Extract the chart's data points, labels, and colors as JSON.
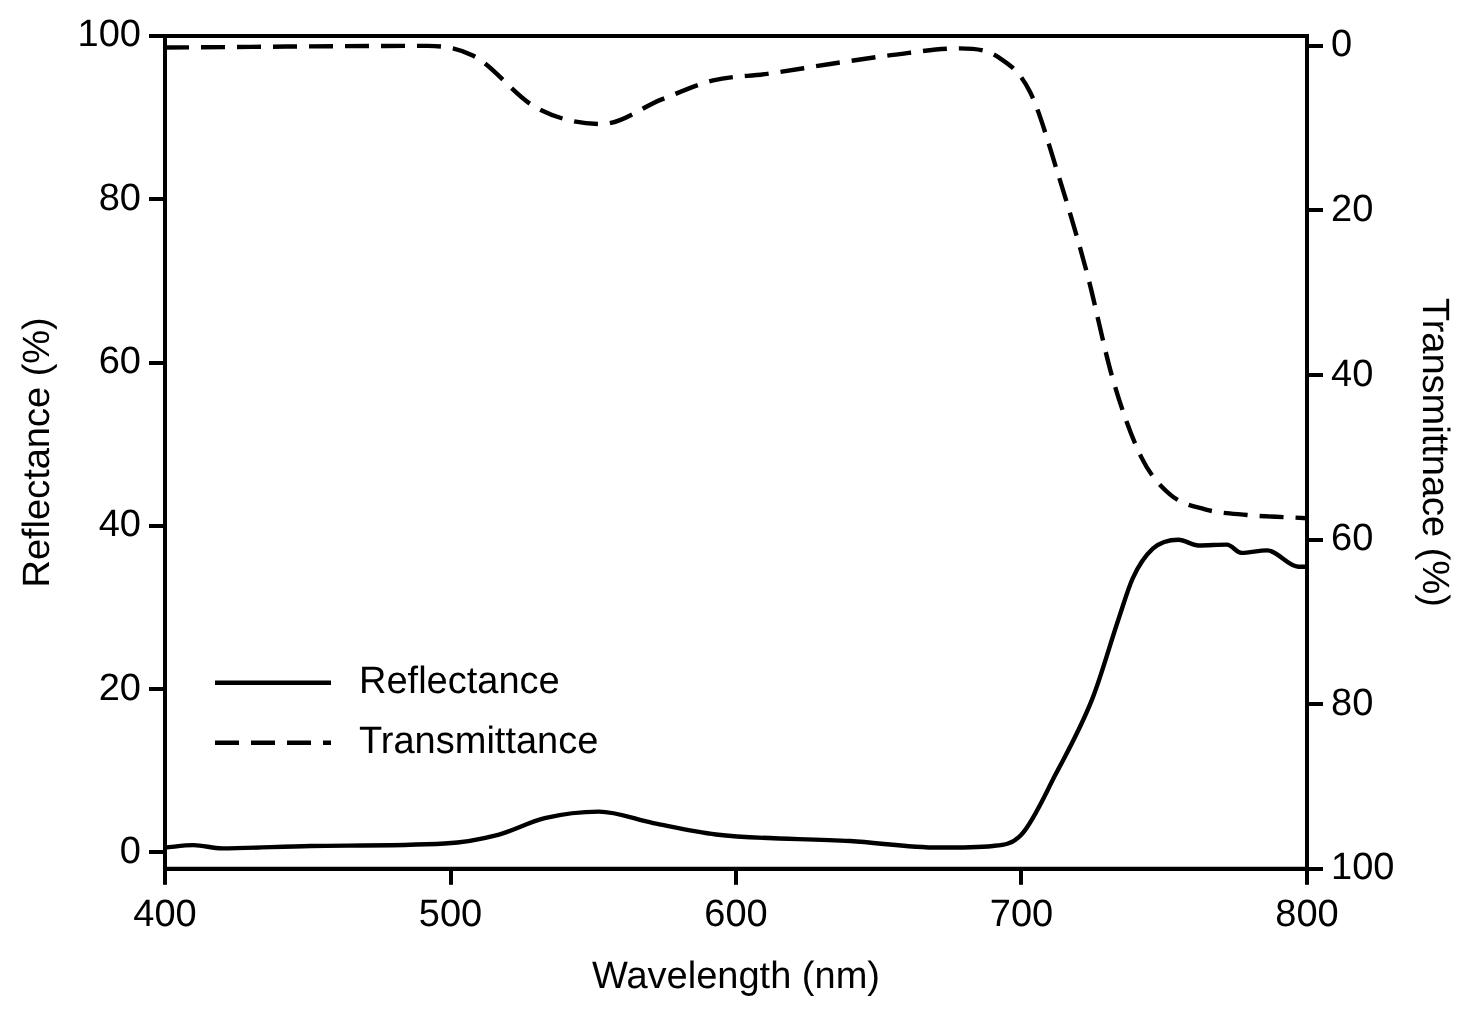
{
  "chart_data": {
    "type": "line",
    "xlabel": "Wavelength (nm)",
    "ylabel": "Reflectance (%)",
    "y2label": "Transmittnace (%)",
    "xlim": [
      400,
      800
    ],
    "xticks": [
      400,
      500,
      600,
      700,
      800
    ],
    "ylim": [
      -2,
      100
    ],
    "yticks": [
      0,
      20,
      40,
      60,
      80,
      100
    ],
    "y2lim": [
      100,
      -1.2
    ],
    "y2ticks": [
      0,
      20,
      40,
      60,
      80,
      100
    ],
    "grid": false,
    "legend": "bottom left",
    "marker": "none",
    "series": [
      {
        "name": "Reflectance",
        "color": "#000000",
        "line_style": "solid",
        "x": [
          400,
          410,
          420,
          451,
          498,
          517,
          533,
          552,
          571,
          593,
          640,
          671,
          690,
          700,
          712,
          725,
          734,
          739,
          746,
          755,
          762,
          772,
          777,
          786,
          797,
          800
        ],
        "values": [
          0.6,
          0.9,
          0.5,
          0.8,
          1.1,
          2.2,
          4.2,
          5.0,
          3.6,
          2.2,
          1.4,
          0.6,
          0.8,
          2.2,
          9.6,
          19,
          28.6,
          33.6,
          37.2,
          38.3,
          37.6,
          37.7,
          36.7,
          37,
          35.0,
          35
        ]
      },
      {
        "name": "Transmittance",
        "color": "#000000",
        "line_style": "dashed",
        "axis": "y2",
        "x": [
          400,
          492,
          508,
          530,
          553,
          574,
          592,
          611,
          633,
          655,
          678,
          692,
          703,
          713,
          723,
          732,
          742,
          752,
          764,
          779,
          800
        ],
        "values": [
          0.2,
          0,
          1.2,
          7.5,
          9.5,
          6.5,
          4.2,
          3.4,
          2.2,
          1.1,
          0.3,
          1.4,
          5.6,
          15.8,
          27.7,
          40.5,
          50,
          54.5,
          56.3,
          57,
          57.4
        ]
      }
    ]
  }
}
